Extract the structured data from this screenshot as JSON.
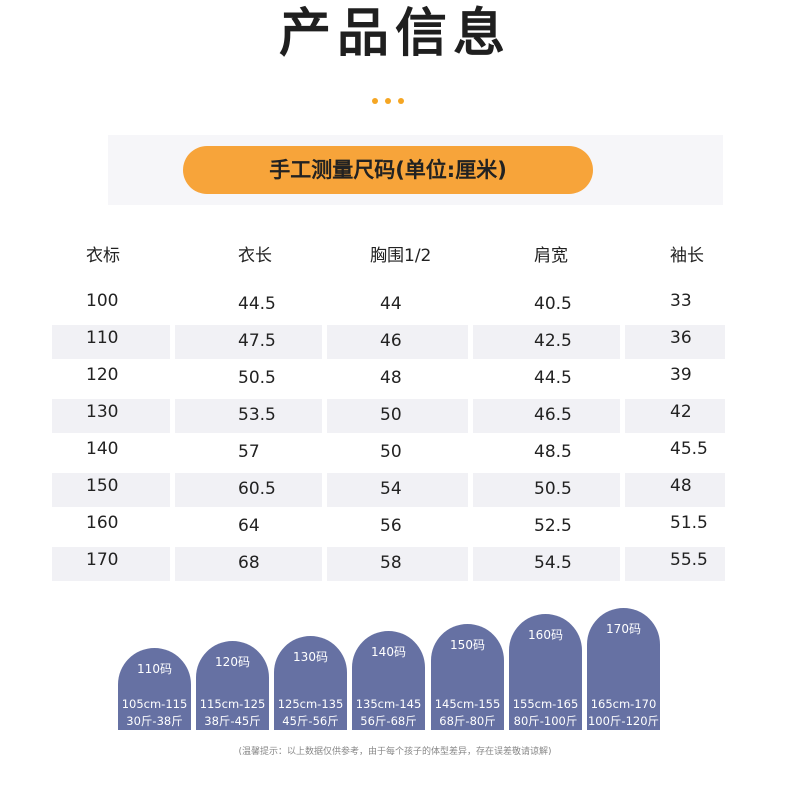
{
  "title": "产品信息",
  "subtitle": "手工测量尺码(单位:厘米)",
  "accent_color": "#f7a43a",
  "table": {
    "headers": [
      "衣标",
      "衣长",
      "胸围1/2",
      "肩宽",
      "袖长"
    ],
    "rows": [
      [
        "100",
        "44.5",
        "44",
        "40.5",
        "33"
      ],
      [
        "110",
        "47.5",
        "46",
        "42.5",
        "36"
      ],
      [
        "120",
        "50.5",
        "48",
        "44.5",
        "39"
      ],
      [
        "130",
        "53.5",
        "50",
        "46.5",
        "42"
      ],
      [
        "140",
        "57",
        "50",
        "48.5",
        "45.5"
      ],
      [
        "150",
        "60.5",
        "54",
        "50.5",
        "48"
      ],
      [
        "160",
        "64",
        "56",
        "52.5",
        "51.5"
      ],
      [
        "170",
        "68",
        "58",
        "54.5",
        "55.5"
      ]
    ]
  },
  "size_guide": [
    {
      "size": "110码",
      "height": "105cm-115",
      "weight": "30斤-38斤"
    },
    {
      "size": "120码",
      "height": "115cm-125",
      "weight": "38斤-45斤"
    },
    {
      "size": "130码",
      "height": "125cm-135",
      "weight": "45斤-56斤"
    },
    {
      "size": "140码",
      "height": "135cm-145",
      "weight": "56斤-68斤"
    },
    {
      "size": "150码",
      "height": "145cm-155",
      "weight": "68斤-80斤"
    },
    {
      "size": "160码",
      "height": "155cm-165",
      "weight": "80斤-100斤"
    },
    {
      "size": "170码",
      "height": "165cm-170",
      "weight": "100斤-120斤"
    }
  ],
  "note": "(温馨提示：以上数据仅供参考，由于每个孩子的体型差异，存在误差敬请谅解)"
}
